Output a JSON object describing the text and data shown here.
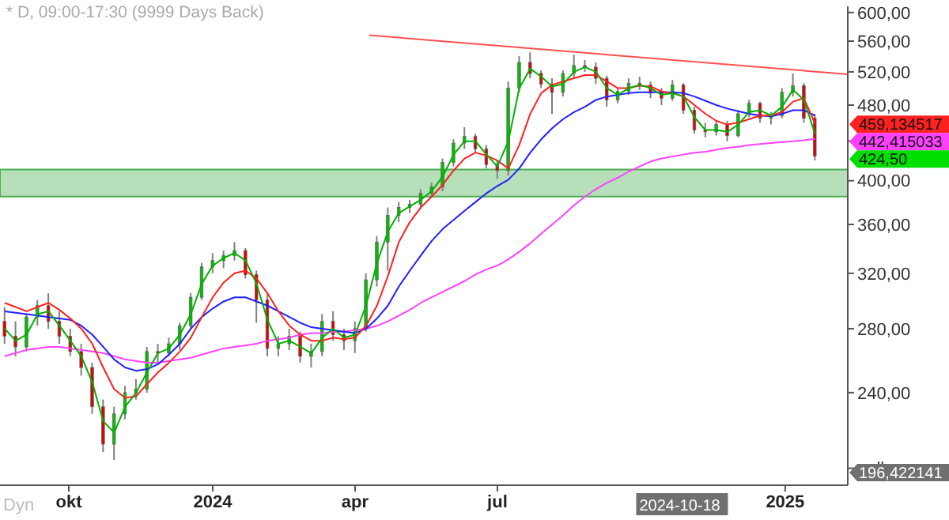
{
  "chart_data": {
    "type": "candlestick",
    "title": "* D, 09:00-17:30 (9999 Days Back)",
    "log": true,
    "x": [
      "2023-08-21",
      "2023-08-28",
      "2023-09-04",
      "2023-09-11",
      "2023-09-18",
      "2023-09-25",
      "2023-10-02",
      "2023-10-09",
      "2023-10-16",
      "2023-10-23",
      "2023-10-30",
      "2023-11-06",
      "2023-11-13",
      "2023-11-20",
      "2023-11-27",
      "2023-12-04",
      "2023-12-11",
      "2023-12-18",
      "2023-12-25",
      "2024-01-01",
      "2024-01-08",
      "2024-01-15",
      "2024-01-22",
      "2024-01-29",
      "2024-02-05",
      "2024-02-12",
      "2024-02-19",
      "2024-02-26",
      "2024-03-04",
      "2024-03-11",
      "2024-03-18",
      "2024-03-25",
      "2024-04-01",
      "2024-04-08",
      "2024-04-15",
      "2024-04-22",
      "2024-04-29",
      "2024-05-06",
      "2024-05-13",
      "2024-05-20",
      "2024-05-27",
      "2024-06-03",
      "2024-06-10",
      "2024-06-17",
      "2024-06-24",
      "2024-07-01",
      "2024-07-08",
      "2024-07-15",
      "2024-07-22",
      "2024-07-29",
      "2024-08-05",
      "2024-08-12",
      "2024-08-19",
      "2024-08-26",
      "2024-09-02",
      "2024-09-09",
      "2024-09-16",
      "2024-09-23",
      "2024-09-30",
      "2024-10-07",
      "2024-10-14",
      "2024-10-21",
      "2024-10-28",
      "2024-11-04",
      "2024-11-11",
      "2024-11-18",
      "2024-11-25",
      "2024-12-02",
      "2024-12-09",
      "2024-12-16",
      "2024-12-23",
      "2024-12-30",
      "2025-01-06",
      "2025-01-13",
      "2025-01-20"
    ],
    "ohlc": [
      [
        285,
        295,
        270,
        275
      ],
      [
        275,
        285,
        262,
        268
      ],
      [
        268,
        290,
        265,
        288
      ],
      [
        288,
        300,
        282,
        296
      ],
      [
        296,
        305,
        280,
        285
      ],
      [
        285,
        292,
        270,
        275
      ],
      [
        275,
        280,
        262,
        265
      ],
      [
        265,
        270,
        250,
        255
      ],
      [
        255,
        258,
        228,
        232
      ],
      [
        232,
        236,
        208,
        212
      ],
      [
        212,
        232,
        204,
        228
      ],
      [
        228,
        244,
        225,
        240
      ],
      [
        240,
        248,
        236,
        242
      ],
      [
        242,
        268,
        240,
        265
      ],
      [
        265,
        270,
        258,
        264
      ],
      [
        264,
        274,
        262,
        270
      ],
      [
        270,
        284,
        266,
        282
      ],
      [
        282,
        305,
        280,
        302
      ],
      [
        302,
        328,
        300,
        325
      ],
      [
        325,
        336,
        320,
        330
      ],
      [
        330,
        338,
        324,
        334
      ],
      [
        334,
        345,
        330,
        338
      ],
      [
        338,
        340,
        316,
        319
      ],
      [
        319,
        322,
        284,
        300
      ],
      [
        300,
        305,
        262,
        267
      ],
      [
        267,
        275,
        262,
        270
      ],
      [
        270,
        280,
        266,
        275
      ],
      [
        275,
        278,
        258,
        262
      ],
      [
        262,
        270,
        255,
        265
      ],
      [
        265,
        290,
        262,
        285
      ],
      [
        285,
        292,
        272,
        276
      ],
      [
        276,
        280,
        266,
        272
      ],
      [
        272,
        285,
        264,
        280
      ],
      [
        280,
        320,
        278,
        315
      ],
      [
        315,
        350,
        310,
        345
      ],
      [
        345,
        375,
        322,
        368
      ],
      [
        368,
        380,
        362,
        375
      ],
      [
        375,
        382,
        370,
        378
      ],
      [
        378,
        392,
        374,
        388
      ],
      [
        388,
        398,
        384,
        394
      ],
      [
        394,
        422,
        390,
        418
      ],
      [
        418,
        442,
        414,
        438
      ],
      [
        438,
        455,
        432,
        445
      ],
      [
        445,
        448,
        428,
        432
      ],
      [
        432,
        436,
        412,
        416
      ],
      [
        416,
        420,
        402,
        410
      ],
      [
        410,
        508,
        405,
        500
      ],
      [
        500,
        540,
        495,
        532
      ],
      [
        532,
        545,
        512,
        518
      ],
      [
        518,
        522,
        500,
        505
      ],
      [
        505,
        512,
        470,
        495
      ],
      [
        495,
        522,
        490,
        518
      ],
      [
        518,
        542,
        512,
        528
      ],
      [
        528,
        535,
        520,
        526
      ],
      [
        526,
        532,
        505,
        512
      ],
      [
        512,
        515,
        478,
        486
      ],
      [
        486,
        500,
        482,
        496
      ],
      [
        496,
        512,
        492,
        506
      ],
      [
        506,
        514,
        498,
        504
      ],
      [
        504,
        508,
        488,
        494
      ],
      [
        494,
        500,
        480,
        488
      ],
      [
        488,
        510,
        485,
        504
      ],
      [
        504,
        506,
        470,
        474
      ],
      [
        474,
        478,
        448,
        452
      ],
      [
        452,
        460,
        444,
        450
      ],
      [
        450,
        462,
        446,
        458
      ],
      [
        458,
        462,
        440,
        446
      ],
      [
        446,
        474,
        444,
        470
      ],
      [
        470,
        486,
        466,
        482
      ],
      [
        482,
        484,
        460,
        465
      ],
      [
        465,
        472,
        458,
        468
      ],
      [
        468,
        500,
        465,
        495
      ],
      [
        495,
        518,
        490,
        503
      ],
      [
        503,
        506,
        460,
        465
      ],
      [
        465,
        470,
        420,
        424.5
      ]
    ],
    "colors": [
      "#e00000",
      "#e00000",
      "#00c000",
      "#00c000",
      "#e00000",
      "#e00000",
      "#e00000",
      "#e00000",
      "#e00000",
      "#e00000",
      "#00c000",
      "#00c000",
      "#00c000",
      "#00c000",
      "#e00000",
      "#00c000",
      "#00c000",
      "#00c000",
      "#00c000",
      "#00c000",
      "#00c000",
      "#00c000",
      "#e00000",
      "#e00000",
      "#e00000",
      "#00c000",
      "#00c000",
      "#e00000",
      "#00c000",
      "#00c000",
      "#e00000",
      "#e00000",
      "#00c000",
      "#00c000",
      "#00c000",
      "#00c000",
      "#00c000",
      "#00c000",
      "#00c000",
      "#00c000",
      "#00c000",
      "#00c000",
      "#00c000",
      "#e00000",
      "#e00000",
      "#e00000",
      "#00c000",
      "#00c000",
      "#e00000",
      "#e00000",
      "#e00000",
      "#00c000",
      "#00c000",
      "#e00000",
      "#e00000",
      "#e00000",
      "#00c000",
      "#00c000",
      "#e00000",
      "#e00000",
      "#e00000",
      "#00c000",
      "#e00000",
      "#e00000",
      "#e00000",
      "#00c000",
      "#e00000",
      "#00c000",
      "#00c000",
      "#e00000",
      "#00c000",
      "#00c000",
      "#00c000",
      "#e00000",
      "#e00000"
    ],
    "series": [
      {
        "type": "line",
        "color": "#ff40ff",
        "values": [
          262,
          264,
          266,
          267,
          268,
          268,
          267,
          266,
          265,
          264,
          262,
          260,
          259,
          258,
          258,
          259,
          260,
          261,
          263,
          265,
          267,
          268,
          269,
          270,
          272,
          273,
          274,
          276,
          277,
          277,
          278,
          278,
          279,
          280,
          282,
          285,
          289,
          293,
          298,
          302,
          306,
          310,
          314,
          319,
          323,
          326,
          331,
          337,
          344,
          352,
          360,
          368,
          377,
          385,
          392,
          398,
          403,
          409,
          414,
          419,
          422,
          424,
          426,
          428,
          429,
          431,
          433,
          434,
          436,
          437,
          438,
          439,
          440,
          441,
          442.4
        ]
      },
      {
        "type": "line",
        "color": "#2020ff",
        "values": [
          292,
          291,
          290,
          289,
          288,
          287,
          286,
          282,
          276,
          268,
          260,
          255,
          253,
          254,
          257,
          263,
          270,
          280,
          288,
          294,
          299,
          302,
          302,
          299,
          296,
          292,
          288,
          284,
          281,
          280,
          279,
          278,
          277,
          280,
          287,
          296,
          310,
          322,
          334,
          346,
          356,
          364,
          372,
          380,
          388,
          395,
          401,
          412,
          428,
          442,
          454,
          464,
          472,
          478,
          486,
          490,
          492,
          494,
          495,
          495,
          495,
          495,
          494,
          490,
          485,
          480,
          476,
          473,
          470,
          468,
          467,
          470,
          474,
          474,
          468
        ]
      },
      {
        "type": "line",
        "color": "#ff2020",
        "values": [
          298,
          295,
          292,
          295,
          298,
          293,
          287,
          280,
          270,
          255,
          242,
          237,
          238,
          245,
          252,
          258,
          265,
          274,
          288,
          302,
          313,
          320,
          322,
          316,
          305,
          292,
          282,
          276,
          272,
          272,
          274,
          273,
          274,
          282,
          296,
          318,
          345,
          362,
          375,
          385,
          396,
          410,
          422,
          428,
          425,
          420,
          412,
          436,
          470,
          494,
          504,
          508,
          512,
          516,
          516,
          508,
          500,
          500,
          503,
          502,
          496,
          494,
          490,
          480,
          470,
          462,
          458,
          460,
          464,
          468,
          468,
          472,
          484,
          488,
          459.134517
        ]
      },
      {
        "type": "line",
        "color": "#00b000",
        "values": [
          280,
          272,
          276,
          290,
          292,
          282,
          272,
          262,
          246,
          224,
          218,
          232,
          240,
          252,
          264,
          267,
          276,
          290,
          312,
          326,
          332,
          336,
          330,
          312,
          286,
          270,
          272,
          268,
          264,
          274,
          280,
          274,
          276,
          296,
          328,
          354,
          370,
          376,
          382,
          390,
          404,
          426,
          440,
          440,
          426,
          414,
          440,
          500,
          524,
          514,
          502,
          505,
          520,
          526,
          520,
          500,
          492,
          500,
          504,
          500,
          492,
          494,
          490,
          466,
          452,
          452,
          450,
          458,
          472,
          474,
          468,
          478,
          498,
          486,
          448
        ]
      },
      {
        "type": "line",
        "color": "#ff5050",
        "x": [
          "2024-04-10",
          "2025-02-10"
        ],
        "values": [
          568,
          517
        ]
      }
    ],
    "bands": [
      {
        "axis": "y",
        "from": 385,
        "to": 411,
        "color": "#4caf50"
      }
    ],
    "xlim": [
      "2023-08-18",
      "2025-02-10"
    ],
    "xticks": [
      {
        "value": "2023-10-01",
        "label": "okt"
      },
      {
        "value": "2024-01-01",
        "label": "2024"
      },
      {
        "value": "2024-04-01",
        "label": "apr"
      },
      {
        "value": "2024-07-01",
        "label": "jul"
      },
      {
        "value": "2025-01-01",
        "label": "2025"
      }
    ],
    "ylim": [
      192,
      609
    ],
    "yticks": [
      {
        "value": 200,
        "label": null
      },
      {
        "value": 240,
        "label": "240,00"
      },
      {
        "value": 280,
        "label": "280,00"
      },
      {
        "value": 320,
        "label": "320,00"
      },
      {
        "value": 360,
        "label": "360,00"
      },
      {
        "value": 400,
        "label": "400,00"
      },
      {
        "value": 440,
        "label": null
      },
      {
        "value": 480,
        "label": "480,00"
      },
      {
        "value": 520,
        "label": "520,00"
      },
      {
        "value": 560,
        "label": "560,00"
      },
      {
        "value": 600,
        "label": "600,00"
      }
    ],
    "annotations": [
      "459,134517",
      "442,415033",
      "424,50",
      "196,422141",
      "2024-10-18",
      "Dyn"
    ]
  }
}
